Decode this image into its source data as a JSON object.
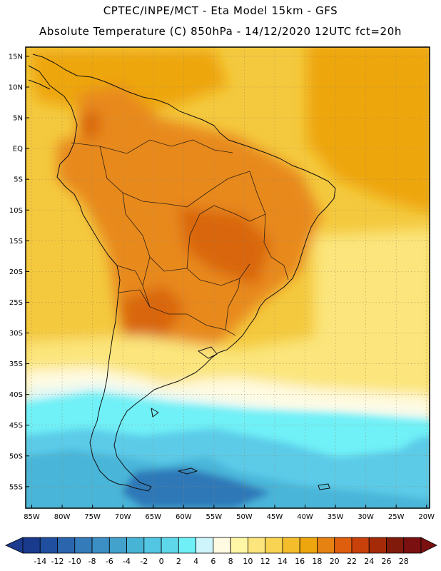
{
  "title": {
    "line1": "CPTEC/INPE/MCT  -   Eta Model 15km  -  GFS",
    "line2": "Absolute Temperature (C) 850hPa - 14/12/2020 12UTC fct=20h"
  },
  "map": {
    "lat_labels": [
      "15N",
      "10N",
      "5N",
      "EQ",
      "5S",
      "10S",
      "15S",
      "20S",
      "25S",
      "30S",
      "35S",
      "40S",
      "45S",
      "50S",
      "55S"
    ],
    "lon_labels": [
      "85W",
      "80W",
      "75W",
      "70W",
      "65W",
      "60W",
      "55W",
      "50W",
      "45W",
      "40W",
      "35W",
      "30W",
      "25W",
      "20W"
    ]
  },
  "colorbar": {
    "labels": [
      "-14",
      "-12",
      "-10",
      "-8",
      "-6",
      "-4",
      "-2",
      "0",
      "2",
      "4",
      "6",
      "8",
      "10",
      "12",
      "14",
      "16",
      "18",
      "20",
      "22",
      "24",
      "26",
      "28"
    ],
    "colors": [
      "#1a3a8e",
      "#1f4f9e",
      "#2a65ad",
      "#347bba",
      "#3b8fc4",
      "#42a2cc",
      "#47b4d6",
      "#52c6e2",
      "#5fd7ea",
      "#6ff0f7",
      "#cdf5fb",
      "#fffbe3",
      "#fff6a6",
      "#fbe57c",
      "#f8d452",
      "#f4bd2c",
      "#eea60e",
      "#e68212",
      "#df5e0d",
      "#c9410a",
      "#a52b08",
      "#801a0a",
      "#7a1010"
    ]
  },
  "field_colors": {
    "cold_deep": "#2d78b8",
    "cold": "#49b5d9",
    "cool": "#5bcbe8",
    "cyan": "#6ff0f7",
    "pale": "#cdf5fb",
    "cream": "#fffbe3",
    "light_yellow": "#fbe57c",
    "yellow": "#f4c93e",
    "gold": "#eea60e",
    "orange": "#e8891a",
    "dark_orange": "#d9660f"
  }
}
